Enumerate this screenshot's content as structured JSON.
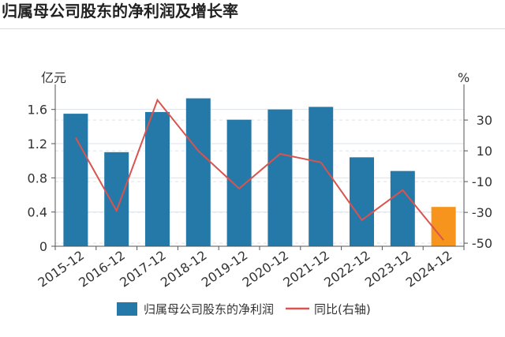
{
  "title": "归属母公司股东的净利润及增长率",
  "chart_data": {
    "type": "bar",
    "categories": [
      "2015-12",
      "2016-12",
      "2017-12",
      "2018-12",
      "2019-12",
      "2020-12",
      "2021-12",
      "2022-12",
      "2023-12",
      "2024-12"
    ],
    "series": [
      {
        "name": "归属母公司股东的净利润",
        "type": "bar",
        "axis": "left",
        "values": [
          1.55,
          1.1,
          1.57,
          1.73,
          1.48,
          1.6,
          1.63,
          1.04,
          0.88,
          0.46
        ],
        "color": "#2479a8",
        "highlight_color": "#f7941d",
        "highlight_index": 9
      },
      {
        "name": "同比(右轴)",
        "type": "line",
        "axis": "right",
        "values": [
          18.5,
          -29.0,
          43.0,
          10.0,
          -14.5,
          8.0,
          2.5,
          -35.0,
          -15.5,
          -48.0
        ],
        "color": "#d9534f"
      }
    ],
    "y_left": {
      "unit": "亿元",
      "ticks": [
        "0",
        "0.4",
        "0.8",
        "1.2",
        "1.6"
      ],
      "tick_values": [
        0,
        0.4,
        0.8,
        1.2,
        1.6
      ],
      "range": [
        0,
        1.8
      ]
    },
    "y_right": {
      "unit": "%",
      "ticks": [
        "-50",
        "-30",
        "-10",
        "10",
        "30"
      ],
      "tick_values": [
        -50,
        -30,
        -10,
        10,
        30
      ],
      "range": [
        -52,
        48
      ]
    },
    "grid": true,
    "legend_position": "bottom"
  }
}
